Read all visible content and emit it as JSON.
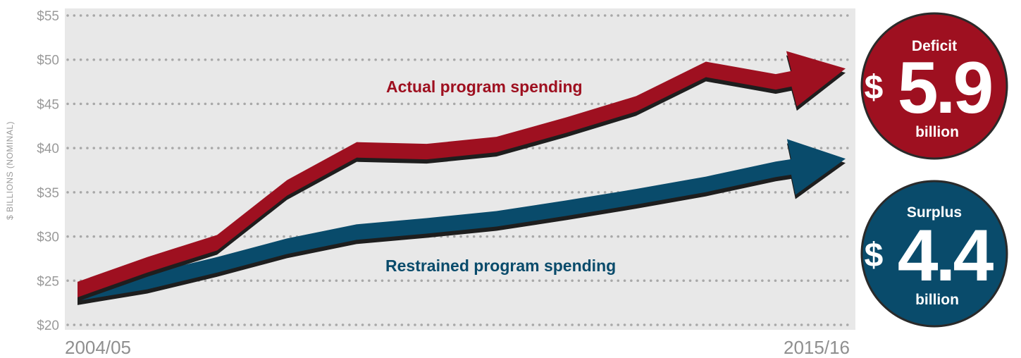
{
  "chart_data": {
    "type": "line",
    "ylabel": "$ BILLIONS (NOMINAL)",
    "ylim": [
      20,
      55
    ],
    "y_ticks": [
      20,
      25,
      30,
      35,
      40,
      45,
      50,
      55
    ],
    "y_tick_labels": [
      "$20",
      "$25",
      "$30",
      "$35",
      "$40",
      "$45",
      "$50",
      "$55"
    ],
    "x_tick_labels": [
      "2004/05",
      "2015/16"
    ],
    "grid": "horizontal-dotted",
    "series": [
      {
        "name": "Actual program spending",
        "color": "#9e1020",
        "values": [
          24.0,
          26.8,
          29.3,
          35.5,
          39.8,
          39.6,
          40.4,
          42.6,
          45.0,
          48.9,
          47.5,
          49.0
        ]
      },
      {
        "name": "Restrained program spending",
        "color": "#094b6b",
        "values": [
          23.6,
          24.9,
          26.8,
          28.9,
          30.5,
          31.2,
          32.0,
          33.2,
          34.5,
          35.9,
          37.6,
          38.8
        ]
      }
    ]
  },
  "badges": [
    {
      "head": "Deficit",
      "dollar": "$",
      "amount": "5.9",
      "unit": "billion",
      "color": "#9e1020"
    },
    {
      "head": "Surplus",
      "dollar": "$",
      "amount": "4.4",
      "unit": "billion",
      "color": "#094b6b"
    }
  ]
}
